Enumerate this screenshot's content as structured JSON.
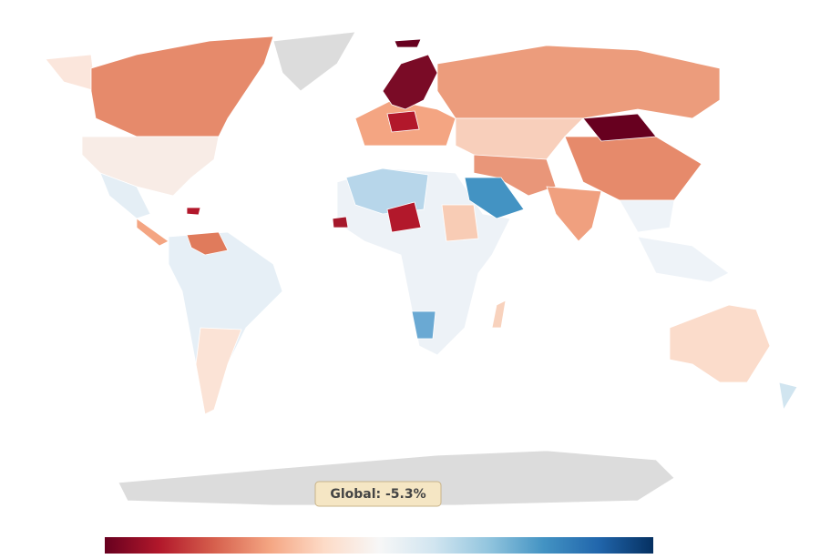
{
  "annotation": "Global: -5.3%",
  "colorbar": {
    "colors": [
      "#67001f",
      "#b2182b",
      "#d6604d",
      "#f4a582",
      "#fddbc7",
      "#f7f7f7",
      "#d1e5f0",
      "#92c5de",
      "#4393c3",
      "#2166ac",
      "#053061"
    ]
  }
}
